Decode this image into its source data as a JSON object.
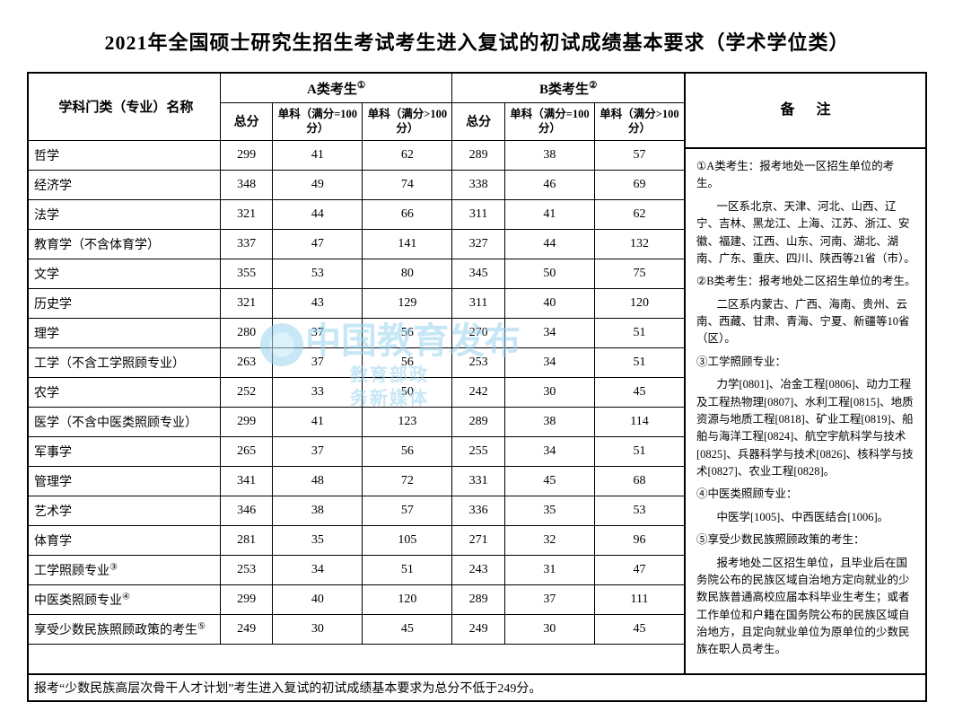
{
  "title": "2021年全国硕士研究生招生考试考生进入复试的初试成绩基本要求（学术学位类）",
  "header": {
    "discipline": "学科门类（专业）名称",
    "groupA": "A类考生",
    "groupB": "B类考生",
    "supA": "①",
    "supB": "②",
    "total": "总分",
    "sub100": "单科（满分=100分）",
    "subOver100": "单科（满分>100分）",
    "remark": "备注"
  },
  "rows": [
    {
      "name": "哲学",
      "a": [
        299,
        41,
        62
      ],
      "b": [
        289,
        38,
        57
      ]
    },
    {
      "name": "经济学",
      "a": [
        348,
        49,
        74
      ],
      "b": [
        338,
        46,
        69
      ]
    },
    {
      "name": "法学",
      "a": [
        321,
        44,
        66
      ],
      "b": [
        311,
        41,
        62
      ]
    },
    {
      "name": "教育学（不含体育学）",
      "a": [
        337,
        47,
        141
      ],
      "b": [
        327,
        44,
        132
      ]
    },
    {
      "name": "文学",
      "a": [
        355,
        53,
        80
      ],
      "b": [
        345,
        50,
        75
      ]
    },
    {
      "name": "历史学",
      "a": [
        321,
        43,
        129
      ],
      "b": [
        311,
        40,
        120
      ]
    },
    {
      "name": "理学",
      "a": [
        280,
        37,
        56
      ],
      "b": [
        270,
        34,
        51
      ]
    },
    {
      "name": "工学（不含工学照顾专业）",
      "a": [
        263,
        37,
        56
      ],
      "b": [
        253,
        34,
        51
      ]
    },
    {
      "name": "农学",
      "a": [
        252,
        33,
        50
      ],
      "b": [
        242,
        30,
        45
      ]
    },
    {
      "name": "医学（不含中医类照顾专业）",
      "a": [
        299,
        41,
        123
      ],
      "b": [
        289,
        38,
        114
      ]
    },
    {
      "name": "军事学",
      "a": [
        265,
        37,
        56
      ],
      "b": [
        255,
        34,
        51
      ]
    },
    {
      "name": "管理学",
      "a": [
        341,
        48,
        72
      ],
      "b": [
        331,
        45,
        68
      ]
    },
    {
      "name": "艺术学",
      "a": [
        346,
        38,
        57
      ],
      "b": [
        336,
        35,
        53
      ]
    },
    {
      "name": "体育学",
      "a": [
        281,
        35,
        105
      ],
      "b": [
        271,
        32,
        96
      ]
    },
    {
      "name": "工学照顾专业",
      "sup": "③",
      "a": [
        253,
        34,
        51
      ],
      "b": [
        243,
        31,
        47
      ]
    },
    {
      "name": "中医类照顾专业",
      "sup": "④",
      "a": [
        299,
        40,
        120
      ],
      "b": [
        289,
        37,
        111
      ]
    },
    {
      "name": "享受少数民族照顾政策的考生",
      "sup": "⑤",
      "a": [
        249,
        30,
        45
      ],
      "b": [
        249,
        30,
        45
      ]
    }
  ],
  "footnote": "报考“少数民族高层次骨干人才计划”考生进入复试的初试成绩基本要求为总分不低于249分。",
  "remarks": {
    "p1lead": "①A类考生：报考地处一区招生单位的考生。",
    "p1": "一区系北京、天津、河北、山西、辽宁、吉林、黑龙江、上海、江苏、浙江、安徽、福建、江西、山东、河南、湖北、湖南、广东、重庆、四川、陕西等21省（市）。",
    "p2lead": "②B类考生：报考地处二区招生单位的考生。",
    "p2": "二区系内蒙古、广西、海南、贵州、云南、西藏、甘肃、青海、宁夏、新疆等10省（区）。",
    "p3lead": "③工学照顾专业：",
    "p3": "力学[0801]、冶金工程[0806]、动力工程及工程热物理[0807]、水利工程[0815]、地质资源与地质工程[0818]、矿业工程[0819]、船舶与海洋工程[0824]、航空宇航科学与技术[0825]、兵器科学与技术[0826]、核科学与技术[0827]、农业工程[0828]。",
    "p4lead": "④中医类照顾专业：",
    "p4": "中医学[1005]、中西医结合[1006]。",
    "p5lead": "⑤享受少数民族照顾政策的考生：",
    "p5": "报考地处二区招生单位，且毕业后在国务院公布的民族区域自治地方定向就业的少数民族普通高校应届本科毕业生考生；或者工作单位和户籍在国务院公布的民族区域自治地方，且定向就业单位为原单位的少数民族在职人员考生。"
  },
  "watermark": {
    "line1": "中国教育发布",
    "line2": "教育部政务新媒体"
  },
  "style": {
    "border_color": "#000000",
    "background": "#ffffff",
    "title_fontsize": 22,
    "cell_fontsize": 14,
    "remark_fontsize": 12.5,
    "watermark_color": "#9ad4ef"
  }
}
